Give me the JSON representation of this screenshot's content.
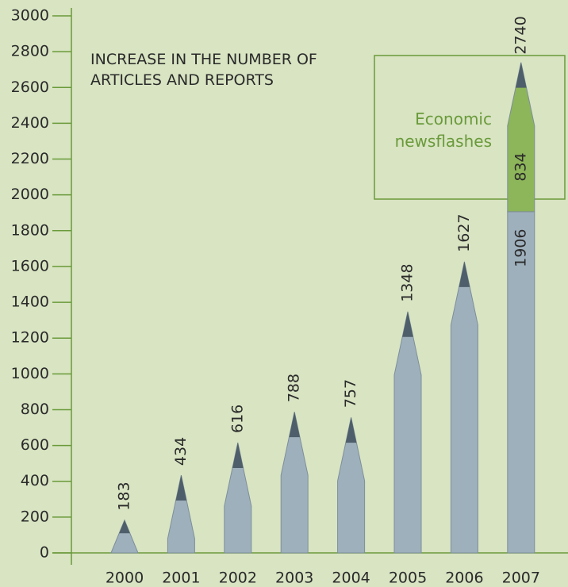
{
  "chart_data": {
    "type": "bar",
    "title": "INCREASE IN THE NUMBER OF ARTICLES AND REPORTS",
    "categories": [
      "2000",
      "2001",
      "2002",
      "2003",
      "2004",
      "2005",
      "2006",
      "2007"
    ],
    "series": [
      {
        "color": "#9fb0bd",
        "values": [
          183,
          434,
          616,
          788,
          757,
          1348,
          1627,
          1906
        ]
      },
      {
        "name": "Economic newsflashes",
        "color": "#8db55a",
        "values": [
          null,
          null,
          null,
          null,
          null,
          null,
          null,
          834
        ]
      }
    ],
    "totals": [
      null,
      null,
      null,
      null,
      null,
      null,
      null,
      2740
    ],
    "ylim": [
      0,
      3000
    ],
    "yticks": [
      0,
      200,
      400,
      600,
      800,
      1000,
      1200,
      1400,
      1600,
      1800,
      2000,
      2200,
      2400,
      2600,
      2800,
      3000
    ],
    "stacked": true
  }
}
